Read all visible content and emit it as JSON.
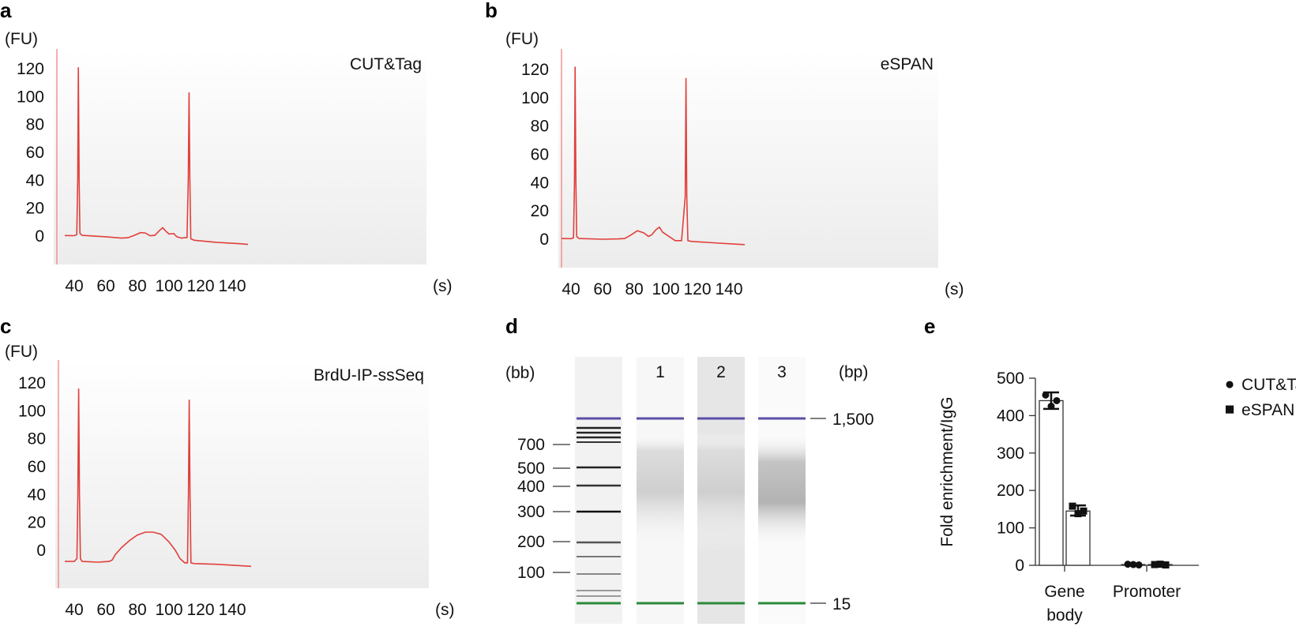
{
  "chart_data": [
    {
      "panel": "a",
      "type": "line",
      "title": "CUT&Tag",
      "yunit": "(FU)",
      "xunit": "(s)",
      "xlim": [
        34,
        150
      ],
      "ylim": [
        -20,
        135
      ],
      "xticks": [
        40,
        60,
        80,
        100,
        120,
        140
      ],
      "yticks": [
        0,
        20,
        40,
        60,
        80,
        100,
        120
      ],
      "series": [
        {
          "name": "CUT&Tag",
          "points": [
            [
              34,
              0.4
            ],
            [
              40,
              0.3
            ],
            [
              41.6,
              1
            ],
            [
              42.2,
              40
            ],
            [
              42.6,
              121
            ],
            [
              43.1,
              40
            ],
            [
              43.6,
              2
            ],
            [
              45,
              0.5
            ],
            [
              60,
              -0.5
            ],
            [
              70,
              -1.5
            ],
            [
              74,
              -1.2
            ],
            [
              78,
              0.5
            ],
            [
              82,
              2.5
            ],
            [
              85,
              2.2
            ],
            [
              88,
              0.2
            ],
            [
              91,
              0.5
            ],
            [
              94,
              4
            ],
            [
              96,
              6
            ],
            [
              98,
              3.5
            ],
            [
              100,
              1.5
            ],
            [
              103,
              1.8
            ],
            [
              105,
              -0.5
            ],
            [
              108,
              -1.5
            ],
            [
              111.4,
              -1
            ],
            [
              112.2,
              40
            ],
            [
              112.7,
              103
            ],
            [
              113.2,
              40
            ],
            [
              113.8,
              -2
            ],
            [
              116,
              -3
            ],
            [
              130,
              -4.5
            ],
            [
              145,
              -5.5
            ],
            [
              150,
              -6
            ]
          ]
        }
      ]
    },
    {
      "panel": "b",
      "type": "line",
      "title": "eSPAN",
      "yunit": "(FU)",
      "xunit": "(s)",
      "xlim": [
        34,
        150
      ],
      "ylim": [
        -20,
        135
      ],
      "xticks": [
        40,
        60,
        80,
        100,
        120,
        140
      ],
      "yticks": [
        0,
        20,
        40,
        60,
        80,
        100,
        120
      ],
      "series": [
        {
          "name": "eSPAN",
          "points": [
            [
              34,
              0.5
            ],
            [
              40,
              0.4
            ],
            [
              41.6,
              1
            ],
            [
              42.2,
              40
            ],
            [
              42.6,
              122
            ],
            [
              43.1,
              40
            ],
            [
              43.6,
              2
            ],
            [
              45,
              0.5
            ],
            [
              60,
              0
            ],
            [
              70,
              0.2
            ],
            [
              74,
              0.5
            ],
            [
              78,
              3
            ],
            [
              82,
              6
            ],
            [
              86,
              4.5
            ],
            [
              89,
              2
            ],
            [
              91,
              3
            ],
            [
              94,
              7
            ],
            [
              96,
              8.5
            ],
            [
              98,
              5
            ],
            [
              102,
              2
            ],
            [
              106,
              -1
            ],
            [
              110,
              -1
            ],
            [
              112.3,
              30
            ],
            [
              112.8,
              114
            ],
            [
              113.3,
              30
            ],
            [
              114,
              -1
            ],
            [
              116,
              -1.5
            ],
            [
              130,
              -2.5
            ],
            [
              145,
              -3.5
            ],
            [
              150,
              -3.8
            ]
          ]
        }
      ]
    },
    {
      "panel": "c",
      "type": "line",
      "title": "BrdU-IP-ssSeq",
      "yunit": "(FU)",
      "xunit": "(s)",
      "xlim": [
        34,
        152
      ],
      "ylim": [
        -22,
        135
      ],
      "xticks": [
        40,
        60,
        80,
        100,
        120,
        140
      ],
      "yticks": [
        0,
        20,
        40,
        60,
        80,
        100,
        120
      ],
      "series": [
        {
          "name": "BrdU-IP-ssSeq",
          "points": [
            [
              34,
              -8
            ],
            [
              40,
              -8
            ],
            [
              41.7,
              -6
            ],
            [
              42.3,
              40
            ],
            [
              42.8,
              116
            ],
            [
              43.3,
              40
            ],
            [
              43.9,
              -6
            ],
            [
              45,
              -8
            ],
            [
              55,
              -8.5
            ],
            [
              62,
              -8
            ],
            [
              64,
              -7
            ],
            [
              66,
              -3
            ],
            [
              70,
              2
            ],
            [
              75,
              7
            ],
            [
              80,
              11
            ],
            [
              85,
              13
            ],
            [
              90,
              13
            ],
            [
              95,
              11.5
            ],
            [
              100,
              6
            ],
            [
              104,
              0
            ],
            [
              107,
              -6
            ],
            [
              110,
              -9
            ],
            [
              111.7,
              -9
            ],
            [
              112.3,
              40
            ],
            [
              112.8,
              108
            ],
            [
              113.3,
              40
            ],
            [
              113.9,
              -9
            ],
            [
              116,
              -9.5
            ],
            [
              130,
              -10
            ],
            [
              145,
              -11
            ],
            [
              152,
              -11.5
            ]
          ]
        }
      ]
    },
    {
      "panel": "d",
      "type": "gel",
      "left_unit": "(bb)",
      "right_unit": "(bp)",
      "lanes": [
        "1",
        "2",
        "3"
      ],
      "ladder_labels": [
        700,
        500,
        400,
        300,
        200,
        100
      ],
      "right_markers": [
        "1,500",
        "15"
      ]
    },
    {
      "panel": "e",
      "type": "bar",
      "categories": [
        {
          "line1": "Gene",
          "line2": "body"
        },
        {
          "line1": "Promoter",
          "line2": ""
        }
      ],
      "ylabel": "Fold enrichment/IgG",
      "ylim": [
        0,
        500
      ],
      "yticks": [
        0,
        100,
        200,
        300,
        400,
        500
      ],
      "series": [
        {
          "name": "CUT&Tag",
          "marker": "●",
          "values": [
            440,
            2
          ],
          "points": [
            [
              455,
              425,
              440
            ],
            [
              3,
              2,
              1
            ]
          ],
          "error": [
            [
              418,
              462
            ],
            [
              0,
              4
            ]
          ]
        },
        {
          "name": "eSPAN",
          "marker": "■",
          "values": [
            145,
            2
          ],
          "points": [
            [
              158,
              138,
              145
            ],
            [
              2,
              3,
              1
            ]
          ],
          "error": [
            [
              133,
              160
            ],
            [
              0,
              4
            ]
          ]
        }
      ]
    }
  ]
}
